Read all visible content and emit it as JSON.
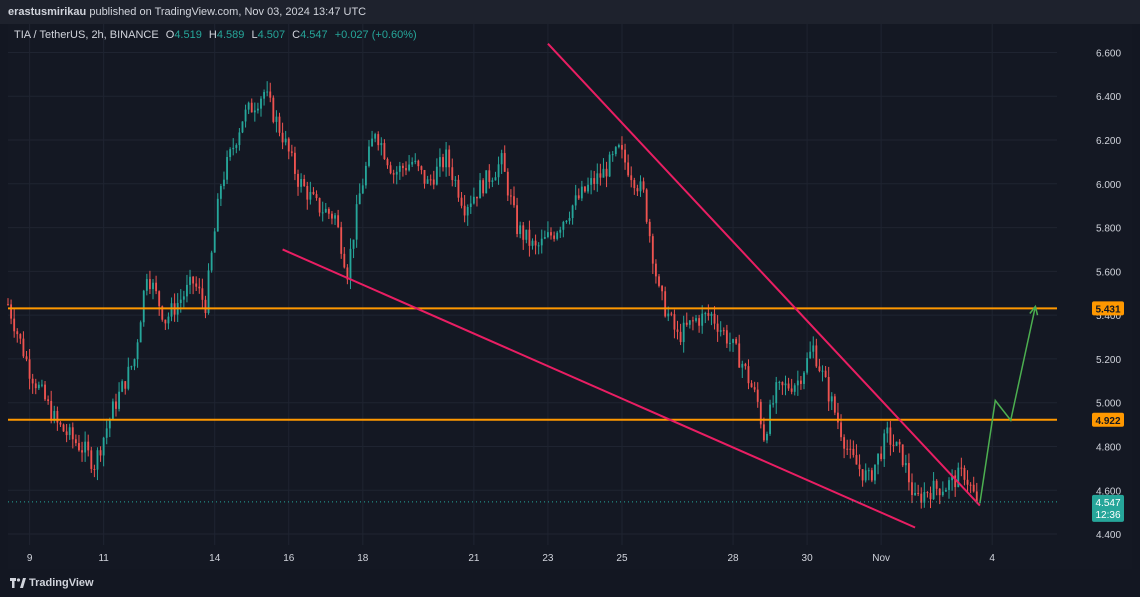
{
  "header": {
    "author": "erastusmirikau",
    "published_text": "published on TradingView.com, Nov 03, 2024 13:47 UTC"
  },
  "legend": {
    "symbol": "TIA / TetherUS, 2h, BINANCE",
    "open_label": "O",
    "open": "4.519",
    "high_label": "H",
    "high": "4.589",
    "low_label": "L",
    "low": "4.507",
    "close_label": "C",
    "close": "4.547",
    "change": "+0.027 (+0.60%)"
  },
  "brand": {
    "name": "TradingView",
    "logo_icon": "tradingview-logo-icon"
  },
  "colors": {
    "background": "#131722",
    "up": "#26a69a",
    "down": "#ef5350",
    "trendline": "#e91e63",
    "level": "#ff9800",
    "projection": "#4caf50"
  },
  "chart_data": {
    "type": "candlestick",
    "symbol": "TIA / TetherUS",
    "interval": "2h",
    "exchange": "BINANCE",
    "ylim": [
      4.35,
      6.73
    ],
    "y_ticks": [
      "6.600",
      "6.400",
      "6.200",
      "6.000",
      "5.800",
      "5.600",
      "5.400",
      "5.200",
      "5.000",
      "4.800",
      "4.600",
      "4.400"
    ],
    "x_ticks": [
      "9",
      "11",
      "14",
      "16",
      "18",
      "21",
      "23",
      "25",
      "28",
      "30",
      "Nov",
      "4"
    ],
    "x_tick_dates": [
      "2024-10-09",
      "2024-10-11",
      "2024-10-14",
      "2024-10-16",
      "2024-10-18",
      "2024-10-21",
      "2024-10-23",
      "2024-10-25",
      "2024-10-28",
      "2024-10-30",
      "2024-11-01",
      "2024-11-04"
    ],
    "xlim": [
      "2024-10-08T10:00",
      "2024-11-05T18:00"
    ],
    "price_path": [
      [
        "2024-10-08T10:00",
        5.45
      ],
      [
        "2024-10-09T00:00",
        5.15
      ],
      [
        "2024-10-09T18:00",
        4.9
      ],
      [
        "2024-10-10T12:00",
        4.78
      ],
      [
        "2024-10-10T18:00",
        4.72
      ],
      [
        "2024-10-11T06:00",
        4.97
      ],
      [
        "2024-10-11T20:00",
        5.2
      ],
      [
        "2024-10-12T04:00",
        5.6
      ],
      [
        "2024-10-12T16:00",
        5.38
      ],
      [
        "2024-10-13T10:00",
        5.55
      ],
      [
        "2024-10-13T18:00",
        5.45
      ],
      [
        "2024-10-14T04:00",
        6.0
      ],
      [
        "2024-10-14T18:00",
        6.3
      ],
      [
        "2024-10-15T08:00",
        6.42
      ],
      [
        "2024-10-15T20:00",
        6.22
      ],
      [
        "2024-10-16T06:00",
        6.02
      ],
      [
        "2024-10-16T18:00",
        5.9
      ],
      [
        "2024-10-17T06:00",
        5.85
      ],
      [
        "2024-10-17T14:00",
        5.6
      ],
      [
        "2024-10-17T22:00",
        5.95
      ],
      [
        "2024-10-18T08:00",
        6.25
      ],
      [
        "2024-10-18T20:00",
        6.05
      ],
      [
        "2024-10-19T08:00",
        6.1
      ],
      [
        "2024-10-19T18:00",
        6.0
      ],
      [
        "2024-10-20T06:00",
        6.12
      ],
      [
        "2024-10-20T18:00",
        5.9
      ],
      [
        "2024-10-21T06:00",
        6.0
      ],
      [
        "2024-10-21T18:00",
        6.1
      ],
      [
        "2024-10-22T04:00",
        5.8
      ],
      [
        "2024-10-22T16:00",
        5.7
      ],
      [
        "2024-10-23T04:00",
        5.78
      ],
      [
        "2024-10-23T16:00",
        5.9
      ],
      [
        "2024-10-24T04:00",
        6.0
      ],
      [
        "2024-10-24T12:00",
        6.05
      ],
      [
        "2024-10-24T22:00",
        6.15
      ],
      [
        "2024-10-25T06:00",
        6.05
      ],
      [
        "2024-10-25T14:00",
        5.95
      ],
      [
        "2024-10-26T00:00",
        5.5
      ],
      [
        "2024-10-26T12:00",
        5.3
      ],
      [
        "2024-10-27T00:00",
        5.38
      ],
      [
        "2024-10-27T10:00",
        5.4
      ],
      [
        "2024-10-27T20:00",
        5.3
      ],
      [
        "2024-10-28T06:00",
        5.18
      ],
      [
        "2024-10-28T16:00",
        5.0
      ],
      [
        "2024-10-28T20:00",
        4.85
      ],
      [
        "2024-10-29T04:00",
        5.05
      ],
      [
        "2024-10-29T18:00",
        5.1
      ],
      [
        "2024-10-30T04:00",
        5.25
      ],
      [
        "2024-10-30T16:00",
        5.0
      ],
      [
        "2024-10-31T04:00",
        4.75
      ],
      [
        "2024-10-31T16:00",
        4.65
      ],
      [
        "2024-11-01T04:00",
        4.85
      ],
      [
        "2024-11-01T14:00",
        4.75
      ],
      [
        "2024-11-01T22:00",
        4.55
      ],
      [
        "2024-11-02T06:00",
        4.6
      ],
      [
        "2024-11-02T18:00",
        4.62
      ],
      [
        "2024-11-03T06:00",
        4.68
      ],
      [
        "2024-11-03T14:00",
        4.547
      ]
    ],
    "current_price": {
      "value": "4.547",
      "countdown": "12:36"
    },
    "horizontal_levels": [
      {
        "value": "5.431"
      },
      {
        "value": "4.922"
      }
    ],
    "trendlines": [
      {
        "from": [
          "2024-10-15T20:00",
          5.7
        ],
        "to": [
          "2024-11-01T22:00",
          4.43
        ]
      },
      {
        "from": [
          "2024-10-23T00:00",
          6.64
        ],
        "to": [
          "2024-11-03T16:00",
          4.53
        ]
      }
    ],
    "projection_path": [
      [
        "2024-11-03T16:00",
        4.54
      ],
      [
        "2024-11-04T02:00",
        5.01
      ],
      [
        "2024-11-04T12:00",
        4.92
      ],
      [
        "2024-11-05T04:00",
        5.44
      ]
    ],
    "grid": true,
    "legend": "top-left"
  }
}
